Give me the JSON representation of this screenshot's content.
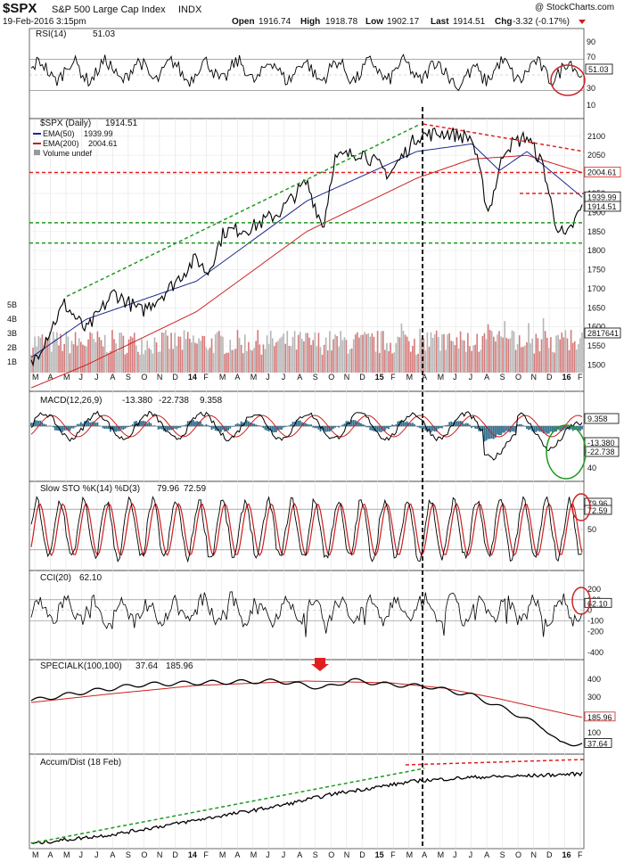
{
  "header": {
    "symbol": "$SPX",
    "name": "S&P 500 Large Cap Index",
    "exchange": "INDX",
    "date": "19-Feb-2016 3:15pm",
    "watermark": "@ StockCharts.com",
    "open_label": "Open",
    "open": "1916.74",
    "high_label": "High",
    "high": "1918.78",
    "low_label": "Low",
    "low": "1902.17",
    "last_label": "Last",
    "last": "1914.51",
    "chg_label": "Chg",
    "chg": "-3.32 (-0.17%)"
  },
  "colors": {
    "price": "#000000",
    "ema50": "#1c2a8c",
    "ema200": "#cc1f1f",
    "volume": "#b5b5b5",
    "volume_down": "#d47a7a",
    "trend_green": "#1f9a1f",
    "trend_red": "#e02020",
    "macd_hist": "#2d6e8e",
    "badge_border": "#cc2222"
  },
  "x_axis": {
    "labels": [
      "M",
      "A",
      "M",
      "J",
      "J",
      "A",
      "S",
      "O",
      "N",
      "D",
      "14",
      "F",
      "M",
      "A",
      "M",
      "J",
      "J",
      "A",
      "S",
      "O",
      "N",
      "D",
      "15",
      "F",
      "M",
      "A",
      "M",
      "J",
      "J",
      "A",
      "S",
      "O",
      "N",
      "D",
      "16",
      "F"
    ]
  },
  "panels": {
    "rsi": {
      "title": "RSI(14)",
      "value": "51.03",
      "ticks": [
        "90",
        "70",
        "50",
        "30",
        "10"
      ]
    },
    "price": {
      "title": "$SPX (Daily)",
      "value": "1914.51",
      "legend": [
        {
          "label": "EMA(50)",
          "value": "1939.99"
        },
        {
          "label": "EMA(200)",
          "value": "2004.61"
        },
        {
          "label": "Volume undef",
          "value": ""
        }
      ],
      "ticks": [
        "2100",
        "2050",
        "2000",
        "1950",
        "1900",
        "1850",
        "1800",
        "1750",
        "1700",
        "1650",
        "1600",
        "1550",
        "1500"
      ],
      "volume_ticks": [
        "5B",
        "4B",
        "3B",
        "2B",
        "1B"
      ],
      "badges": [
        "2004.61",
        "1939.99",
        "1914.51",
        "2817641"
      ]
    },
    "macd": {
      "title": "MACD(12,26,9)",
      "v1": "-13.380",
      "v2": "-22.738",
      "v3": "9.358",
      "ticks": [
        "40",
        "20",
        "0",
        "-20",
        "-40"
      ],
      "badges": [
        "9.358",
        "-13.380",
        "-22.738"
      ]
    },
    "sto": {
      "title": "Slow STO %K(14) %D(3)",
      "v1": "79.96",
      "v2": "72.59",
      "ticks": [
        "50"
      ],
      "badges": [
        "79.96",
        "72.59"
      ]
    },
    "cci": {
      "title": "CCI(20)",
      "value": "62.10",
      "ticks": [
        "200",
        "100",
        "0",
        "-100",
        "-200",
        "-400"
      ],
      "badges": [
        "62.10"
      ]
    },
    "specialk": {
      "title": "SPECIALK(100,100)",
      "v1": "37.64",
      "v2": "185.96",
      "ticks": [
        "400",
        "300",
        "200",
        "100"
      ],
      "badges": [
        "185.96",
        "37.64"
      ]
    },
    "ad": {
      "title": "Accum/Dist (18 Feb)"
    }
  },
  "chart_data": {
    "type": "line",
    "title": "$SPX S&P 500 Large Cap Index",
    "x_axis_months": [
      "M",
      "A",
      "M",
      "J",
      "J",
      "A",
      "S",
      "O",
      "N",
      "D",
      "14",
      "F",
      "M",
      "A",
      "M",
      "J",
      "J",
      "A",
      "S",
      "O",
      "N",
      "D",
      "15",
      "F",
      "M",
      "A",
      "M",
      "J",
      "J",
      "A",
      "S",
      "O",
      "N",
      "D",
      "16",
      "F"
    ],
    "series": [
      {
        "name": "$SPX (Daily)",
        "x": [
          0,
          1,
          2,
          3,
          4,
          5,
          6,
          7,
          8,
          9,
          10,
          11,
          12,
          13,
          14,
          15,
          16,
          17,
          18,
          19,
          20,
          21,
          22,
          23,
          24,
          25,
          26,
          27,
          28,
          29,
          30,
          31,
          32,
          33,
          34,
          35
        ],
        "values": [
          1570,
          1610,
          1650,
          1630,
          1690,
          1650,
          1690,
          1760,
          1800,
          1810,
          1845,
          1770,
          1860,
          1880,
          1920,
          1960,
          1975,
          2000,
          1985,
          1860,
          2060,
          2080,
          2050,
          2110,
          2090,
          2115,
          2100,
          2105,
          2080,
          1930,
          1950,
          2060,
          2090,
          2050,
          1880,
          1914
        ]
      },
      {
        "name": "EMA(50)",
        "x": [
          0,
          5,
          10,
          15,
          20,
          25,
          30,
          35
        ],
        "values": [
          1540,
          1640,
          1800,
          1900,
          1990,
          2070,
          2030,
          1940
        ]
      },
      {
        "name": "EMA(200)",
        "x": [
          0,
          5,
          10,
          15,
          20,
          25,
          30,
          35
        ],
        "values": [
          1450,
          1560,
          1700,
          1810,
          1900,
          1990,
          2045,
          2005
        ]
      }
    ],
    "ylim": [
      1480,
      2130
    ],
    "horizontal_levels": [
      2005,
      1950,
      1875,
      1820
    ]
  }
}
